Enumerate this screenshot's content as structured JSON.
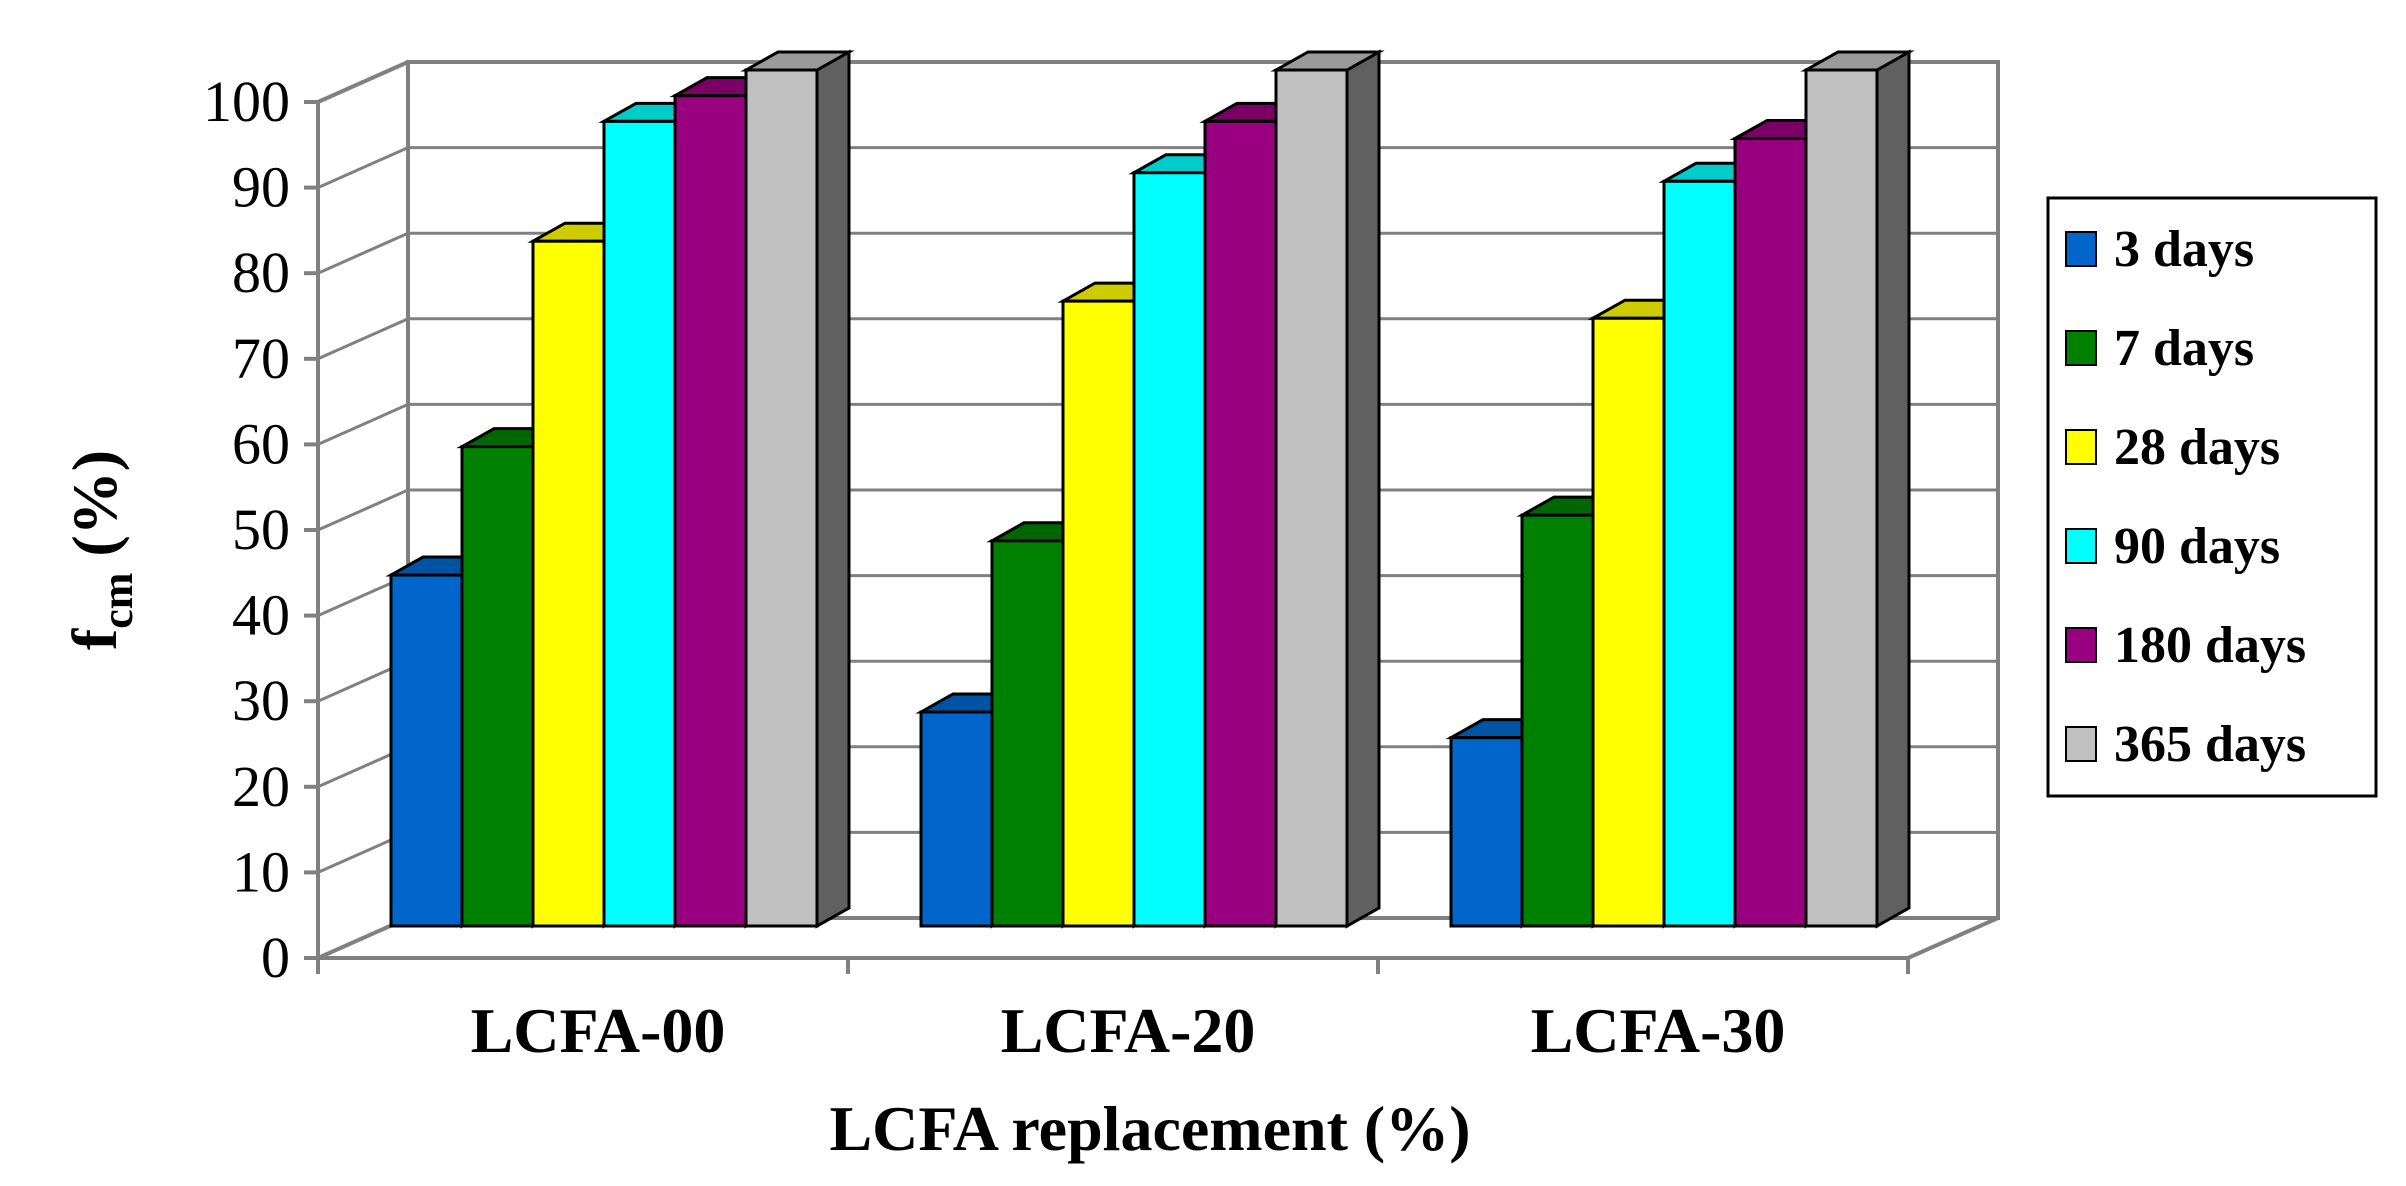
{
  "chart_data": {
    "type": "bar",
    "title": "",
    "xlabel": "LCFA replacement (%)",
    "ylabel": "f",
    "ylabel_subscript": "cm",
    "ylabel_suffix": " (%)",
    "ylim": [
      0,
      100
    ],
    "yticks": [
      "0",
      "10",
      "20",
      "30",
      "40",
      "50",
      "60",
      "70",
      "80",
      "90",
      "100"
    ],
    "categories": [
      "LCFA-00",
      "LCFA-20",
      "LCFA-30"
    ],
    "series": [
      {
        "name": "3 days",
        "values": [
          41,
          25,
          22
        ],
        "color": "#0066cc"
      },
      {
        "name": "7 days",
        "values": [
          56,
          45,
          48
        ],
        "color": "#008000"
      },
      {
        "name": "28 days",
        "values": [
          80,
          73,
          71
        ],
        "color": "#ffff00"
      },
      {
        "name": "90 days",
        "values": [
          94,
          88,
          87
        ],
        "color": "#00ffff"
      },
      {
        "name": "180 days",
        "values": [
          97,
          94,
          92
        ],
        "color": "#990080"
      },
      {
        "name": "365 days",
        "values": [
          100,
          100,
          100
        ],
        "color": "#c0c0c0"
      }
    ],
    "legend_position": "right",
    "grid": true
  }
}
